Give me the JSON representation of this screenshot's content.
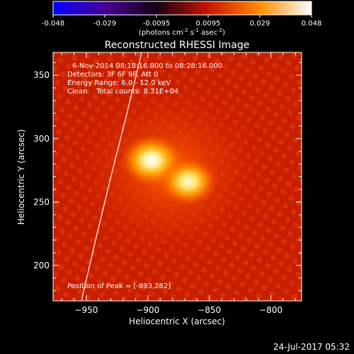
{
  "colorbar": {
    "ticks": [
      "-0.048",
      "-0.029",
      "-0.0095",
      "0.0095",
      "0.029",
      "0.048"
    ],
    "unit_main": "(photons cm",
    "unit_exp1": "-2",
    "unit_mid": " s",
    "unit_exp2": "-1",
    "unit_tail": " asec",
    "unit_exp3": "-2",
    "unit_close": ")"
  },
  "chart_data": {
    "type": "heatmap",
    "title": "Reconstructed RHESSI Image",
    "xlabel": "Heliocentric X (arcsec)",
    "ylabel": "Heliocentric Y (arcsec)",
    "xlim": [
      -977,
      -775
    ],
    "ylim": [
      172,
      368
    ],
    "x_ticks": [
      -950,
      -900,
      -850,
      -800
    ],
    "y_ticks": [
      200,
      250,
      300,
      350
    ],
    "x_tick_labels": [
      "−950",
      "−900",
      "−850",
      "−800"
    ],
    "y_tick_labels": [
      "200",
      "250",
      "300",
      "350"
    ],
    "color_range": [
      -0.048,
      0.048
    ],
    "colormap": [
      "#0000ff",
      "#4a0096",
      "#140014",
      "#c81400",
      "#ff8c00",
      "#ffffff"
    ],
    "sources": [
      {
        "x": -897,
        "y": 283,
        "peak": 0.048
      },
      {
        "x": -867,
        "y": 266,
        "peak": 0.045
      }
    ],
    "limb": [
      [
        -954,
        172
      ],
      [
        -943,
        218
      ],
      [
        -930,
        270
      ],
      [
        -917,
        320
      ],
      [
        -905,
        368
      ]
    ],
    "annotations": [
      "6-Nov-2014 08:18:16.000 to 08:28:16.000",
      "Detectors: 3F 6F 9F, Att 0",
      "Energy Range: 6.0 - 12.0 keV",
      "Clean    Total counts: 8.31E+04",
      "Position of Peak = [-893,282]"
    ]
  },
  "footer": {
    "timestamp": "24-Jul-2017 05:32"
  }
}
